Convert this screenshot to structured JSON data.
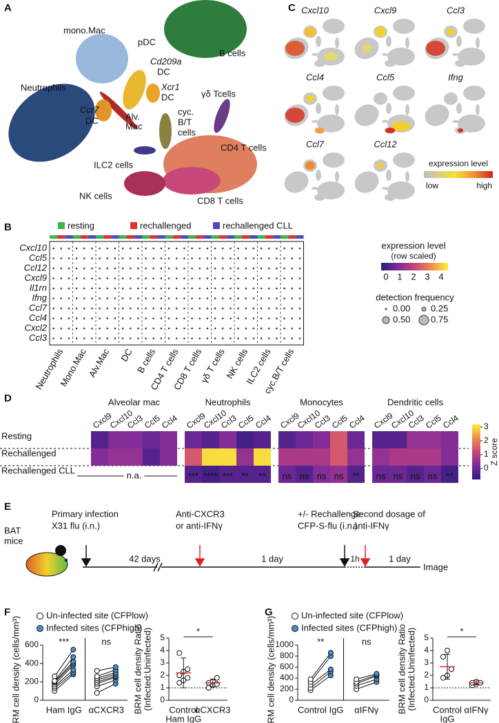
{
  "panels": {
    "A": {
      "letter": "A",
      "labels": [
        "mono.Mac",
        "pDC",
        "Cd209a",
        "DC",
        "B cells",
        "Xcr1",
        "DC",
        "Neutrophils",
        "γδ Tcells",
        "Ccr7",
        "DC",
        "Alv.",
        "Mac",
        "cyc.",
        "B/T",
        "cells",
        "CD4 T cells",
        "ILC2 cells",
        "NK cells",
        "CD8 T cells"
      ]
    },
    "C": {
      "letter": "C",
      "genes": [
        "Cxcl10",
        "Cxcl9",
        "Ccl3",
        "Ccl4",
        "Ccl5",
        "Ifng",
        "Ccl7",
        "Ccl12"
      ],
      "legend_title": "expression level",
      "low": "low",
      "high": "high"
    },
    "B": {
      "letter": "B",
      "conditions": [
        {
          "name": "resting",
          "color": "#3cb44b"
        },
        {
          "name": "rechallenged",
          "color": "#e03030"
        },
        {
          "name": "rechallenged CLL",
          "color": "#4b4bc8"
        }
      ],
      "genes": [
        "Cxcl10",
        "Ccl5",
        "Ccl12",
        "Cxcl9",
        "Il1rn",
        "Ifng",
        "Ccl7",
        "Ccl4",
        "Cxcl2",
        "Ccl3"
      ],
      "cell_types": [
        "Neutrophils",
        "Mono.Mac",
        "Alv.Mac",
        "DC",
        "B cells",
        "CD4 T cells",
        "CD8 T cells",
        "γδ T cells",
        "NK cells",
        "ILC2 cells",
        "cyc.B/T cells"
      ],
      "color_title": "expression level",
      "color_subtitle": "(row scaled)",
      "color_ticks": [
        0,
        1,
        2,
        3,
        4
      ],
      "size_title": "detection frequency",
      "size_ticks": [
        {
          "value": 0,
          "label": "0.00"
        },
        {
          "value": 0.25,
          "label": "0.25"
        },
        {
          "value": 0.5,
          "label": "0.50"
        },
        {
          "value": 0.75,
          "label": "0.75"
        }
      ]
    },
    "D": {
      "letter": "D"
    },
    "E": {
      "letter": "E",
      "mouse": [
        "BAT",
        "mice"
      ],
      "events": [
        {
          "lines": [
            "Primary infection",
            "X31 flu (i.n.)"
          ],
          "color": "#111111"
        },
        {
          "lines": [
            "Anti-CXCR3",
            "or anti-IFNγ"
          ],
          "color": "#e02020"
        },
        {
          "lines": [
            "+/- Rechallenge",
            "CFP-S-flu (i.n.)"
          ],
          "color": "#111111"
        },
        {
          "lines": [
            "Second dosage of",
            "anti-IFNγ"
          ],
          "color": "#e02020"
        }
      ],
      "intervals": [
        "42 days",
        "1 day",
        "1h",
        "1 day"
      ],
      "end": "Image"
    },
    "F": {
      "letter": "F"
    },
    "G": {
      "letter": "G"
    }
  },
  "chart_data": [
    {
      "type": "heatmap",
      "row_labels": [
        "Resting",
        "Rechallenged",
        "Rechallenged CLL"
      ],
      "zlim": [
        -0.8,
        3.2
      ],
      "zticks": [
        0,
        1,
        2,
        3
      ],
      "colorbar_label": "Z score",
      "blocks": [
        {
          "title": "Alveolar mac",
          "columns": [
            "Cxcl9",
            "Cxcl10",
            "Ccl3",
            "Ccl5",
            "Ccl4"
          ],
          "values": [
            [
              -0.3,
              0.3,
              0.3,
              0.0,
              0.3
            ],
            [
              0.3,
              0.5,
              0.5,
              -0.3,
              0.3
            ],
            [
              null,
              null,
              null,
              null,
              null
            ]
          ],
          "na_label": "n.a."
        },
        {
          "title": "Neutrophils",
          "columns": [
            "Cxcl9",
            "Cxcl10",
            "Ccl3",
            "Ccl5",
            "Ccl4"
          ],
          "values": [
            [
              0.0,
              -0.3,
              0.3,
              -0.5,
              -0.3
            ],
            [
              1.5,
              3.0,
              3.0,
              0.5,
              3.0
            ],
            [
              -0.3,
              -0.5,
              -0.3,
              -0.3,
              -0.3
            ]
          ],
          "stats": [
            "***",
            "****",
            "***",
            "**",
            "**"
          ]
        },
        {
          "title": "Monocytes",
          "columns": [
            "Cxcl9",
            "Cxcl10",
            "Ccl3",
            "Ccl5",
            "Ccl4"
          ],
          "values": [
            [
              -0.3,
              0.0,
              0.3,
              1.5,
              0.0
            ],
            [
              0.8,
              0.8,
              0.8,
              1.5,
              0.5
            ],
            [
              0.0,
              -0.3,
              0.3,
              0.5,
              -0.3
            ]
          ],
          "stats": [
            "ns",
            "ns",
            "ns",
            "ns",
            "**"
          ]
        },
        {
          "title": "Dendritic cells",
          "columns": [
            "Cxcl9",
            "Cxcl10",
            "Ccl3",
            "Ccl5",
            "Ccl4"
          ],
          "values": [
            [
              -0.3,
              -0.3,
              0.5,
              0.5,
              0.3
            ],
            [
              0.5,
              0.8,
              0.8,
              0.8,
              0.3
            ],
            [
              0.0,
              0.0,
              -0.3,
              0.0,
              -0.5
            ]
          ],
          "stats": [
            "ns",
            "ns",
            "ns",
            "ns",
            "**"
          ]
        }
      ]
    },
    {
      "type": "paired",
      "y_label": "BRM cell density (cells/mm³)",
      "ylim": [
        0,
        600
      ],
      "yticks": [
        0,
        200,
        400,
        600
      ],
      "categories": [
        "Ham IgG",
        "αCXCR3"
      ],
      "annotations": [
        "***",
        "ns"
      ],
      "series": [
        {
          "name": "Un-infected site (CFPlow)",
          "color": "#ffffff",
          "values": [
            [
              100,
              130,
              150,
              170,
              190,
              200,
              210,
              260
            ],
            [
              80,
              150,
              180,
              200,
              220,
              240,
              260,
              320
            ]
          ]
        },
        {
          "name": "Infected sites (CFPhigh)",
          "color": "#4a90d0",
          "values": [
            [
              280,
              300,
              330,
              380,
              400,
              420,
              470,
              550
            ],
            [
              180,
              220,
              250,
              260,
              280,
              300,
              330,
              360
            ]
          ]
        }
      ]
    },
    {
      "type": "dot",
      "y_label": [
        "BRM cell density Ratio",
        "(Infected:Uninfected)"
      ],
      "ylim": [
        0,
        5
      ],
      "yticks": [
        0,
        1,
        2,
        3,
        4,
        5
      ],
      "reference": 1,
      "categories": [
        [
          "Control",
          "Ham IgG"
        ],
        [
          "αCXCR3"
        ]
      ],
      "values": [
        [
          1.4,
          1.6,
          1.8,
          2.0,
          2.3,
          2.5,
          3.8
        ],
        [
          1.0,
          1.2,
          1.3,
          1.4,
          1.5,
          1.8
        ]
      ],
      "means": [
        2.2,
        1.4
      ],
      "errors": [
        1.2,
        0.3
      ],
      "annotation": "*",
      "mean_color": "#e03030"
    },
    {
      "type": "paired",
      "y_label": "BRM cell density (cells/mm³)",
      "ylim": [
        0,
        1000
      ],
      "yticks": [
        0,
        200,
        400,
        600,
        800,
        1000
      ],
      "categories": [
        "Control IgG",
        "αIFNγ"
      ],
      "annotations": [
        "**",
        "ns"
      ],
      "series": [
        {
          "name": "Un-infected site (CFPlow)",
          "color": "#ffffff",
          "values": [
            [
              180,
              220,
              280,
              330,
              380
            ],
            [
              200,
              260,
              300,
              330,
              380
            ]
          ]
        },
        {
          "name": "Infected sites (CFPhigh)",
          "color": "#4a90d0",
          "values": [
            [
              450,
              520,
              560,
              800,
              860
            ],
            [
              330,
              380,
              440,
              460,
              480
            ]
          ]
        }
      ]
    },
    {
      "type": "dot",
      "y_label": [
        "BRM cell density Ratio",
        "(Infected:Uninfected)"
      ],
      "ylim": [
        0,
        5
      ],
      "yticks": [
        0,
        1,
        2,
        3,
        4,
        5
      ],
      "reference": 1,
      "categories": [
        [
          "Control",
          "IgG"
        ],
        [
          "αIFNγ"
        ]
      ],
      "values": [
        [
          1.8,
          2.0,
          2.5,
          3.5,
          4.0
        ],
        [
          1.2,
          1.3,
          1.4,
          1.4,
          1.5
        ]
      ],
      "means": [
        2.7,
        1.4
      ],
      "errors": [
        1.0,
        0.15
      ],
      "annotation": "*",
      "mean_color": "#e03030"
    }
  ]
}
